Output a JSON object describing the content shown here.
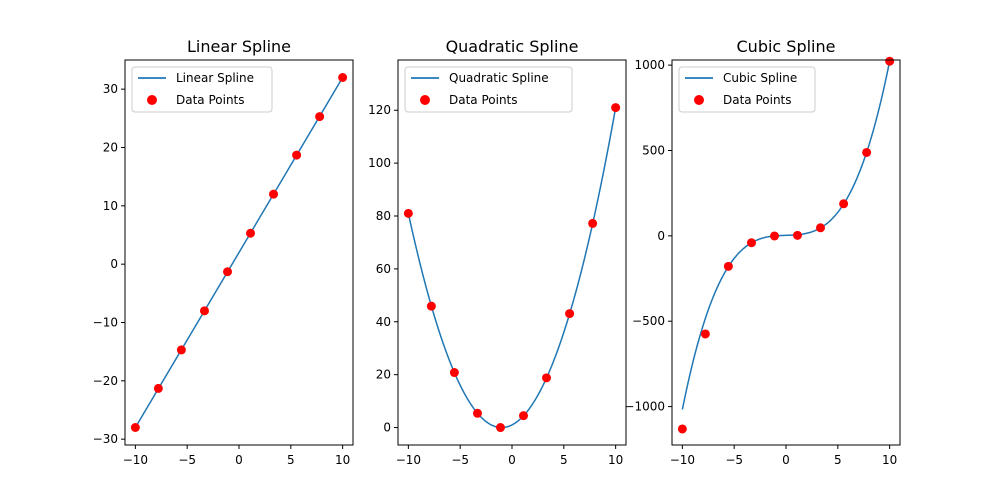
{
  "chart_data": [
    {
      "type": "line",
      "title": "Linear Spline",
      "xlabel": "",
      "ylabel": "",
      "xlim": [
        -11,
        11
      ],
      "ylim": [
        -31,
        35
      ],
      "xticks": [
        -10,
        -5,
        0,
        5,
        10
      ],
      "xtick_labels": [
        "−10",
        "−5",
        "0",
        "5",
        "10"
      ],
      "yticks": [
        -30,
        -20,
        -10,
        0,
        10,
        20,
        30
      ],
      "ytick_labels": [
        "−30",
        "−20",
        "−10",
        "0",
        "10",
        "20",
        "30"
      ],
      "legend": {
        "placement": "top-left",
        "entries": [
          "Linear Spline",
          "Data Points"
        ]
      },
      "series": [
        {
          "name": "Linear Spline",
          "kind": "line",
          "color": "#1f77b4",
          "function": "linear",
          "coef": [
            3,
            2,
            0
          ]
        },
        {
          "name": "Data Points",
          "kind": "scatter",
          "color": "#ff0000",
          "x": [
            -10,
            -7.78,
            -5.56,
            -3.33,
            -1.11,
            1.11,
            3.33,
            5.56,
            7.78,
            10
          ],
          "y": [
            -28,
            -21.3,
            -14.7,
            -8,
            -1.3,
            5.3,
            12,
            18.7,
            25.3,
            32
          ]
        }
      ]
    },
    {
      "type": "line",
      "title": "Quadratic Spline",
      "xlabel": "",
      "ylabel": "",
      "xlim": [
        -11,
        11
      ],
      "ylim": [
        -6.6,
        139
      ],
      "xticks": [
        -10,
        -5,
        0,
        5,
        10
      ],
      "xtick_labels": [
        "−10",
        "−5",
        "0",
        "5",
        "10"
      ],
      "yticks": [
        0,
        20,
        40,
        60,
        80,
        100,
        120
      ],
      "ytick_labels": [
        "0",
        "20",
        "40",
        "60",
        "80",
        "100",
        "120"
      ],
      "legend": {
        "placement": "top-left",
        "entries": [
          "Quadratic Spline",
          "Data Points"
        ]
      },
      "series": [
        {
          "name": "Quadratic Spline",
          "kind": "line",
          "color": "#1f77b4",
          "function": "quadratic",
          "coef": [
            1,
            2,
            1
          ]
        },
        {
          "name": "Data Points",
          "kind": "scatter",
          "color": "#ff0000",
          "x": [
            -10,
            -7.78,
            -5.56,
            -3.33,
            -1.11,
            1.11,
            3.33,
            5.56,
            7.78,
            10
          ],
          "y": [
            81,
            45.9,
            20.8,
            5.4,
            0.01,
            4.5,
            18.8,
            43.1,
            77.2,
            121
          ]
        }
      ]
    },
    {
      "type": "line",
      "title": "Cubic Spline",
      "xlabel": "",
      "ylabel": "",
      "xlim": [
        -11,
        11
      ],
      "ylim": [
        -1225,
        1030
      ],
      "xticks": [
        -10,
        -5,
        0,
        5,
        10
      ],
      "xtick_labels": [
        "−10",
        "−5",
        "0",
        "5",
        "10"
      ],
      "yticks": [
        -1000,
        -500,
        0,
        500,
        1000
      ],
      "ytick_labels": [
        "−1000",
        "−500",
        "0",
        "500",
        "1000"
      ],
      "legend": {
        "placement": "top-left",
        "entries": [
          "Cubic Spline",
          "Data Points"
        ]
      },
      "series": [
        {
          "name": "Cubic Spline",
          "kind": "line",
          "color": "#1f77b4",
          "function": "cubic",
          "coef": [
            1,
            0,
            2,
            3
          ]
        },
        {
          "name": "Data Points",
          "kind": "scatter",
          "color": "#ff0000",
          "x": [
            -10,
            -7.78,
            -5.56,
            -3.33,
            -1.11,
            1.11,
            3.33,
            5.56,
            7.78,
            10
          ],
          "y": [
            -1131,
            -574.5,
            -178.6,
            -40.3,
            -0.6,
            3.0,
            47.2,
            187.7,
            488.3,
            1023
          ]
        }
      ]
    }
  ]
}
